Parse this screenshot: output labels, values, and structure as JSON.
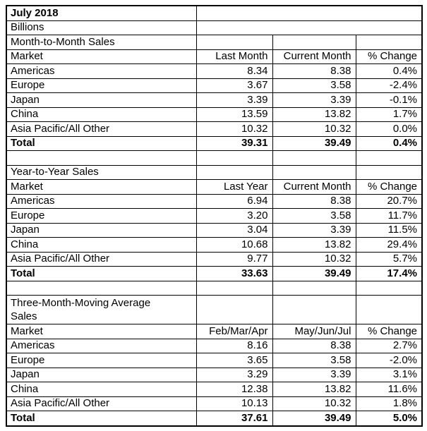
{
  "report": {
    "title": "July 2018",
    "units": "Billions"
  },
  "sections": [
    {
      "name": "Month-to-Month Sales",
      "columns": [
        "Market",
        "Last Month",
        "Current Month",
        "% Change"
      ],
      "rows": [
        [
          "Americas",
          "8.34",
          "8.38",
          "0.4%"
        ],
        [
          "Europe",
          "3.67",
          "3.58",
          "-2.4%"
        ],
        [
          "Japan",
          "3.39",
          "3.39",
          "-0.1%"
        ],
        [
          "China",
          "13.59",
          "13.82",
          "1.7%"
        ],
        [
          "Asia Pacific/All Other",
          "10.32",
          "10.32",
          "0.0%"
        ]
      ],
      "total": [
        "Total",
        "39.31",
        "39.49",
        "0.4%"
      ]
    },
    {
      "name": "Year-to-Year Sales",
      "columns": [
        "Market",
        "Last Year",
        "Current Month",
        "% Change"
      ],
      "rows": [
        [
          "Americas",
          "6.94",
          "8.38",
          "20.7%"
        ],
        [
          "Europe",
          "3.20",
          "3.58",
          "11.7%"
        ],
        [
          "Japan",
          "3.04",
          "3.39",
          "11.5%"
        ],
        [
          "China",
          "10.68",
          "13.82",
          "29.4%"
        ],
        [
          "Asia Pacific/All Other",
          "9.77",
          "10.32",
          "5.7%"
        ]
      ],
      "total": [
        "Total",
        "33.63",
        "39.49",
        "17.4%"
      ]
    },
    {
      "name": "Three-Month-Moving Average Sales",
      "columns": [
        "Market",
        "Feb/Mar/Apr",
        "May/Jun/Jul",
        "% Change"
      ],
      "rows": [
        [
          "Americas",
          "8.16",
          "8.38",
          "2.7%"
        ],
        [
          "Europe",
          "3.65",
          "3.58",
          "-2.0%"
        ],
        [
          "Japan",
          "3.29",
          "3.39",
          "3.1%"
        ],
        [
          "China",
          "12.38",
          "13.82",
          "11.6%"
        ],
        [
          "Asia Pacific/All Other",
          "10.13",
          "10.32",
          "1.8%"
        ]
      ],
      "total": [
        "Total",
        "37.61",
        "39.49",
        "5.0%"
      ]
    }
  ]
}
